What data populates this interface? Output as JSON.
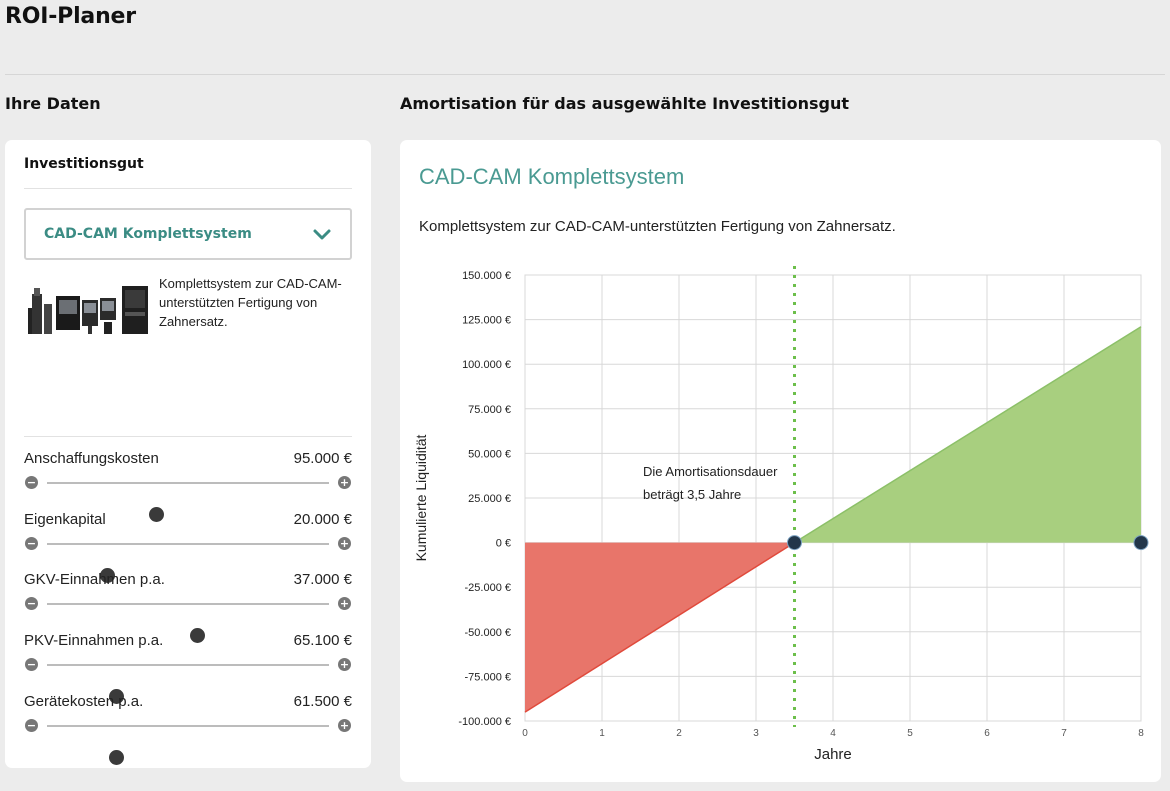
{
  "page": {
    "title": "ROI-Planer"
  },
  "sections": {
    "left_title": "Ihre Daten",
    "right_title": "Amortisation für das ausgewählte Investitionsgut"
  },
  "investment": {
    "heading": "Investitionsgut",
    "selected": "CAD-CAM Komplettsystem",
    "description": "Komplettsystem zur CAD-CAM-unterstützten Fertigung von Zahnersatz."
  },
  "sliders": [
    {
      "label": "Anschaffungskosten",
      "value": "95.000 €",
      "position": 0.386
    },
    {
      "label": "Eigenkapital",
      "value": "20.000 €",
      "position": 0.211
    },
    {
      "label": "GKV-Einnahmen p.a.",
      "value": "37.000 €",
      "position": 0.532
    },
    {
      "label": "PKV-Einnahmen p.a.",
      "value": "65.100 €",
      "position": 0.246
    },
    {
      "label": "Gerätekosten p.a.",
      "value": "61.500 €",
      "position": 0.246
    }
  ],
  "chart_title": "CAD-CAM Komplettsystem",
  "chart_description": "Komplettsystem zur CAD-CAM-unterstützten Fertigung von Zahnersatz.",
  "chart_data": {
    "type": "area",
    "xlabel": "Jahre",
    "ylabel": "Kumulierte Liquidität",
    "xlim": [
      0,
      8
    ],
    "ylim": [
      -100000,
      150000
    ],
    "x_ticks": [
      "0",
      "1",
      "2",
      "3",
      "4",
      "5",
      "6",
      "7",
      "8"
    ],
    "y_ticks": [
      {
        "value": 150000,
        "label": "150.000 €"
      },
      {
        "value": 125000,
        "label": "125.000 €"
      },
      {
        "value": 100000,
        "label": "100.000 €"
      },
      {
        "value": 75000,
        "label": "75.000 €"
      },
      {
        "value": 50000,
        "label": "50.000 €"
      },
      {
        "value": 25000,
        "label": "25.000 €"
      },
      {
        "value": 0,
        "label": "0 €"
      },
      {
        "value": -25000,
        "label": "-25.000 €"
      },
      {
        "value": -50000,
        "label": "-50.000 €"
      },
      {
        "value": -75000,
        "label": "-75.000 €"
      },
      {
        "value": -100000,
        "label": "-100.000 €"
      }
    ],
    "series": [
      {
        "x": [
          0,
          3.5
        ],
        "y": [
          -95000,
          0
        ],
        "color": "#e8756a",
        "line_color": "#e04a3c"
      },
      {
        "x": [
          3.5,
          8
        ],
        "y": [
          0,
          121000
        ],
        "color": "#a8cf7f",
        "line_color": "#8cc068"
      }
    ],
    "points": [
      {
        "x": 3.5,
        "y": 0
      },
      {
        "x": 8,
        "y": 0
      }
    ],
    "point_color": "#22364a",
    "payback_year": 3.5,
    "payback_line_color": "#6cbf4a",
    "annotation": [
      "Die Amortisationsdauer",
      "beträgt 3,5 Jahre"
    ],
    "grid": true
  }
}
